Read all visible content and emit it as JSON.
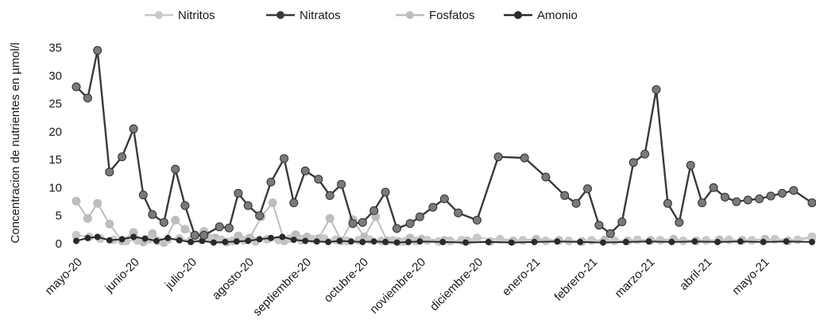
{
  "chart_data": {
    "type": "line",
    "ylabel": "Concentracion de nutrientes  en µmol/l",
    "ylim": [
      0,
      35
    ],
    "yticks": [
      0,
      5,
      10,
      15,
      20,
      25,
      30,
      35
    ],
    "grid": false,
    "legend_position": "top",
    "xlim": [
      0,
      12.85
    ],
    "x_tick_labels": [
      {
        "label": "mayo-20",
        "x": 0
      },
      {
        "label": "junio-20",
        "x": 1
      },
      {
        "label": "julio-20",
        "x": 2
      },
      {
        "label": "agosto-20",
        "x": 3
      },
      {
        "label": "septiembre-20",
        "x": 4
      },
      {
        "label": "octubre-20",
        "x": 5
      },
      {
        "label": "noviembre-20",
        "x": 6
      },
      {
        "label": "diciembre-20",
        "x": 7
      },
      {
        "label": "enero-21",
        "x": 8
      },
      {
        "label": "febrero-21",
        "x": 9
      },
      {
        "label": "marzo-21",
        "x": 10
      },
      {
        "label": "abril-21",
        "x": 11
      },
      {
        "label": "mayo-21",
        "x": 12
      }
    ],
    "series": [
      {
        "name": "Nitritos",
        "color": "#c8c8c8",
        "marker_color": "#c8c8c8",
        "x": [
          0,
          0.23,
          0.42,
          0.65,
          0.87,
          1.07,
          1.27,
          1.43,
          1.6,
          1.8,
          2.0,
          2.17,
          2.33,
          2.53,
          2.73,
          2.93,
          3.13,
          3.33,
          3.53,
          3.73,
          3.93,
          4.13,
          4.33,
          4.53,
          4.73,
          4.93,
          5.13,
          5.33,
          5.53,
          5.73,
          5.93,
          6.13,
          6.33,
          6.53,
          6.73,
          7.0,
          7.4,
          7.8,
          8.2,
          8.6,
          9.0,
          9.4,
          9.8,
          10.2,
          10.6,
          11.0,
          11.4,
          11.8,
          12.2,
          12.6,
          12.85
        ],
        "values": [
          1.5,
          1.2,
          0.9,
          0.7,
          0.5,
          0.6,
          0.8,
          0.5,
          0.7,
          0.9,
          0.6,
          0.8,
          1.0,
          0.7,
          0.5,
          0.6,
          0.4,
          0.8,
          0.7,
          0.9,
          0.6,
          0.8,
          0.9,
          0.7,
          0.5,
          0.6,
          0.7,
          0.5,
          0.6,
          0.4,
          0.5,
          0.6,
          0.4,
          0.5,
          0.6,
          1.0,
          0.8,
          0.6,
          0.5,
          0.5,
          0.6,
          0.5,
          0.7,
          0.6,
          0.5,
          0.6,
          0.7,
          0.6,
          0.8,
          0.7,
          1.0
        ]
      },
      {
        "name": "Nitratos",
        "color": "#3a3a3a",
        "marker_color": "#7a7a7a",
        "x": [
          0,
          0.2,
          0.37,
          0.58,
          0.8,
          1.0,
          1.17,
          1.33,
          1.53,
          1.73,
          1.9,
          2.07,
          2.23,
          2.5,
          2.67,
          2.83,
          3.0,
          3.2,
          3.4,
          3.63,
          3.8,
          4.0,
          4.23,
          4.43,
          4.63,
          4.83,
          5.0,
          5.2,
          5.4,
          5.6,
          5.83,
          6.0,
          6.23,
          6.43,
          6.67,
          7.0,
          7.37,
          7.83,
          8.2,
          8.53,
          8.73,
          8.93,
          9.13,
          9.33,
          9.53,
          9.73,
          9.93,
          10.13,
          10.33,
          10.53,
          10.73,
          10.93,
          11.13,
          11.33,
          11.53,
          11.73,
          11.93,
          12.13,
          12.33,
          12.53,
          12.85
        ],
        "values": [
          28,
          26,
          34.5,
          12.8,
          15.5,
          20.5,
          8.7,
          5.2,
          3.8,
          13.3,
          6.8,
          1.5,
          1.5,
          3.0,
          2.8,
          9.0,
          6.8,
          5.0,
          11.0,
          15.2,
          7.3,
          13.0,
          11.5,
          8.6,
          10.6,
          3.6,
          3.8,
          5.9,
          9.2,
          2.7,
          3.6,
          4.8,
          6.5,
          8.0,
          5.5,
          4.2,
          15.5,
          15.3,
          11.9,
          8.6,
          7.2,
          9.8,
          3.3,
          1.8,
          3.9,
          14.5,
          16.0,
          27.5,
          7.2,
          3.8,
          14.0,
          7.3,
          10.0,
          8.3,
          7.5,
          7.8,
          8.0,
          8.5,
          9.0,
          9.5,
          7.3
        ]
      },
      {
        "name": "Fosfatos",
        "color": "#bdbdbd",
        "marker_color": "#bdbdbd",
        "x": [
          0,
          0.2,
          0.37,
          0.58,
          0.8,
          1.0,
          1.17,
          1.33,
          1.53,
          1.73,
          1.9,
          2.07,
          2.23,
          2.43,
          2.63,
          2.83,
          3.03,
          3.23,
          3.43,
          3.63,
          3.83,
          4.03,
          4.23,
          4.43,
          4.63,
          4.83,
          5.03,
          5.23,
          5.43,
          5.63,
          5.83,
          6.03,
          6.43,
          6.83,
          7.23,
          7.63,
          8.03,
          8.43,
          8.83,
          9.23,
          9.63,
          10.03,
          10.43,
          10.83,
          11.23,
          11.63,
          12.03,
          12.43,
          12.85
        ],
        "values": [
          7.6,
          4.5,
          7.2,
          3.5,
          0.5,
          2.0,
          0.3,
          1.8,
          0.2,
          4.2,
          2.6,
          1.5,
          2.2,
          1.0,
          0.3,
          1.4,
          1.0,
          4.8,
          7.3,
          0.5,
          1.6,
          1.2,
          0.9,
          4.5,
          0.5,
          4.3,
          1.2,
          4.8,
          0.5,
          0.4,
          1.0,
          0.8,
          0.6,
          0.5,
          0.4,
          0.5,
          0.8,
          0.6,
          0.4,
          0.7,
          0.5,
          0.6,
          0.8,
          0.5,
          0.7,
          0.6,
          0.8,
          0.5,
          1.2
        ]
      },
      {
        "name": "Amonio",
        "color": "#2a2a2a",
        "marker_color": "#2a2a2a",
        "x": [
          0,
          0.2,
          0.37,
          0.58,
          0.8,
          1.0,
          1.2,
          1.4,
          1.6,
          1.8,
          2.0,
          2.2,
          2.4,
          2.6,
          2.8,
          3.0,
          3.2,
          3.4,
          3.6,
          3.8,
          4.0,
          4.2,
          4.4,
          4.6,
          4.8,
          5.0,
          5.2,
          5.4,
          5.6,
          5.8,
          6.0,
          6.4,
          6.8,
          7.2,
          7.6,
          8.0,
          8.4,
          8.8,
          9.2,
          9.6,
          10.0,
          10.4,
          10.8,
          11.2,
          11.6,
          12.0,
          12.4,
          12.85
        ],
        "values": [
          0.5,
          1.0,
          1.2,
          0.6,
          0.8,
          1.2,
          0.9,
          0.5,
          1.0,
          0.6,
          0.3,
          0.5,
          0.2,
          0.3,
          0.4,
          0.5,
          0.8,
          1.0,
          1.2,
          0.7,
          0.5,
          0.4,
          0.3,
          0.5,
          0.4,
          0.3,
          0.4,
          0.3,
          0.2,
          0.3,
          0.4,
          0.3,
          0.2,
          0.3,
          0.2,
          0.3,
          0.4,
          0.3,
          0.2,
          0.3,
          0.4,
          0.3,
          0.4,
          0.3,
          0.4,
          0.3,
          0.4,
          0.3
        ]
      }
    ]
  }
}
